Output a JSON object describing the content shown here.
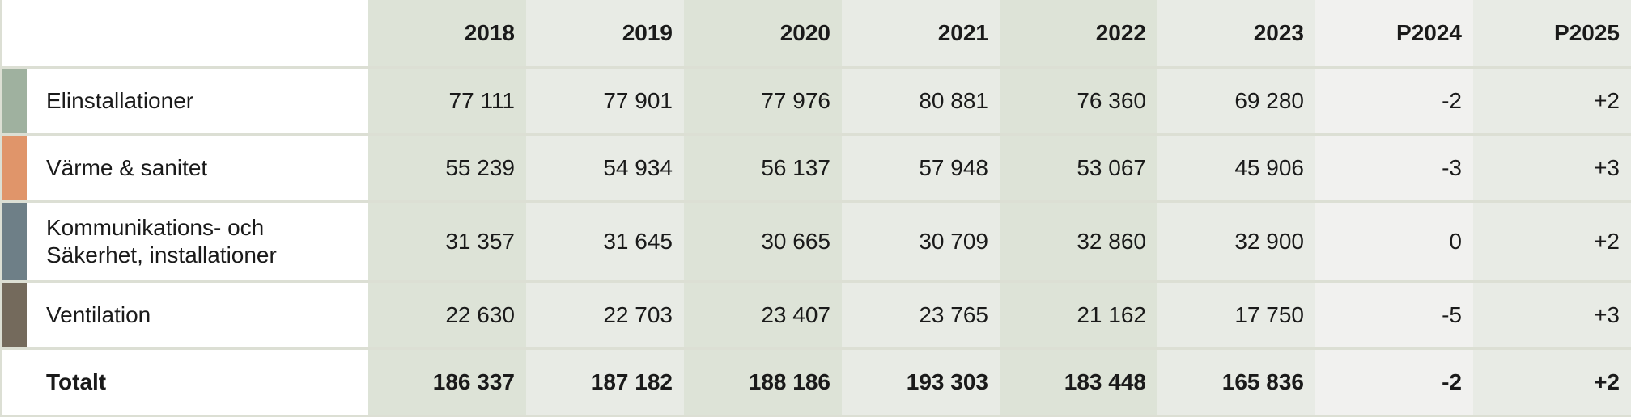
{
  "chart_data": {
    "type": "table",
    "columns": [
      "2018",
      "2019",
      "2020",
      "2021",
      "2022",
      "2023",
      "P2024",
      "P2025"
    ],
    "rows": [
      {
        "label": "Elinstallationer",
        "color": "#9fb19f",
        "values": [
          "77 111",
          "77 901",
          "77 976",
          "80 881",
          "76 360",
          "69 280",
          "-2",
          "+2"
        ]
      },
      {
        "label": "Värme & sanitet",
        "color": "#e0956a",
        "values": [
          "55 239",
          "54 934",
          "56 137",
          "57 948",
          "53 067",
          "45 906",
          "-3",
          "+3"
        ]
      },
      {
        "label": "Kommunikations- och Säkerhet, installationer",
        "label_lines": [
          "Kommunikations- och",
          "Säkerhet, installationer"
        ],
        "color": "#6e7f87",
        "values": [
          "31 357",
          "31 645",
          "30 665",
          "30 709",
          "32 860",
          "32 900",
          "0",
          "+2"
        ]
      },
      {
        "label": "Ventilation",
        "color": "#746a5c",
        "values": [
          "22 630",
          "22 703",
          "23 407",
          "23 765",
          "21 162",
          "17 750",
          "-5",
          "+3"
        ]
      }
    ],
    "total": {
      "label": "Totalt",
      "values": [
        "186 337",
        "187 182",
        "188 186",
        "193 303",
        "183 448",
        "165 836",
        "-2",
        "+2"
      ]
    }
  }
}
